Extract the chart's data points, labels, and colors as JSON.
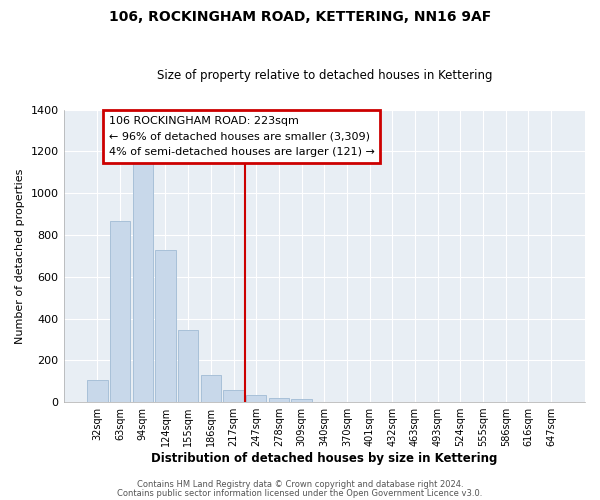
{
  "title": "106, ROCKINGHAM ROAD, KETTERING, NN16 9AF",
  "subtitle": "Size of property relative to detached houses in Kettering",
  "xlabel": "Distribution of detached houses by size in Kettering",
  "ylabel": "Number of detached properties",
  "bar_labels": [
    "32sqm",
    "63sqm",
    "94sqm",
    "124sqm",
    "155sqm",
    "186sqm",
    "217sqm",
    "247sqm",
    "278sqm",
    "309sqm",
    "340sqm",
    "370sqm",
    "401sqm",
    "432sqm",
    "463sqm",
    "493sqm",
    "524sqm",
    "555sqm",
    "586sqm",
    "616sqm",
    "647sqm"
  ],
  "bar_values": [
    105,
    865,
    1145,
    730,
    345,
    130,
    60,
    35,
    20,
    15,
    0,
    0,
    0,
    0,
    0,
    0,
    0,
    0,
    0,
    0,
    0
  ],
  "bar_color": "#c8d8ea",
  "bar_edge_color": "#a8c0d8",
  "vline_color": "#cc0000",
  "ylim": [
    0,
    1400
  ],
  "yticks": [
    0,
    200,
    400,
    600,
    800,
    1000,
    1200,
    1400
  ],
  "ann_line1": "106 ROCKINGHAM ROAD: 223sqm",
  "ann_line2": "← 96% of detached houses are smaller (3,309)",
  "ann_line3": "4% of semi-detached houses are larger (121) →",
  "annotation_box_color": "#cc0000",
  "footer1": "Contains HM Land Registry data © Crown copyright and database right 2024.",
  "footer2": "Contains public sector information licensed under the Open Government Licence v3.0.",
  "plot_bg_color": "#e8eef4",
  "fig_bg_color": "#ffffff",
  "grid_color": "#ffffff",
  "figsize": [
    6.0,
    5.0
  ],
  "dpi": 100
}
